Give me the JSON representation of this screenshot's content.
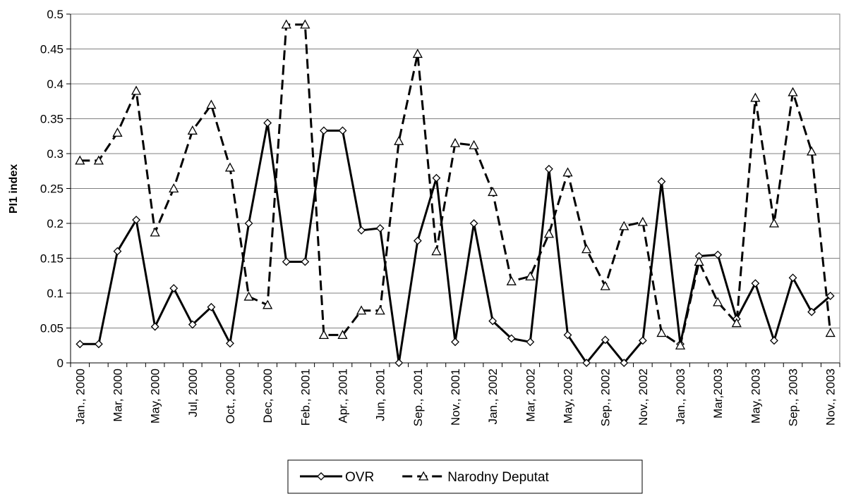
{
  "chart_data": {
    "type": "line",
    "y_label": "PI1 index",
    "categories": [
      "Jan., 2000",
      null,
      "Mar, 2000",
      null,
      "May, 2000",
      null,
      "Jul, 2000",
      null,
      "Oct., 2000",
      null,
      "Dec, 2000",
      null,
      "Feb., 2001",
      null,
      "Apr., 2001",
      null,
      "Jun, 2001",
      null,
      "Sep., 2001",
      null,
      "Nov., 2001",
      null,
      "Jan., 2002",
      null,
      "Mar, 2002",
      null,
      "May, 2002",
      null,
      "Sep., 2002",
      null,
      "Nov., 2002",
      null,
      "Jan., 2003",
      null,
      "Mar,2003",
      null,
      "May, 2003",
      null,
      "Sep., 2003",
      null,
      "Nov., 2003"
    ],
    "series": [
      {
        "name": "OVR",
        "color": "#000000",
        "marker": "diamond",
        "dashed": false,
        "values": [
          0.027,
          0.027,
          0.16,
          0.205,
          0.052,
          0.107,
          0.055,
          0.08,
          0.028,
          0.2,
          0.344,
          0.145,
          0.145,
          0.333,
          0.333,
          0.19,
          0.193,
          0.0,
          0.175,
          0.265,
          0.03,
          0.2,
          0.06,
          0.035,
          0.03,
          0.278,
          0.04,
          0.0,
          0.033,
          0.0,
          0.032,
          0.26,
          0.027,
          0.153,
          0.155,
          0.063,
          0.114,
          0.032,
          0.122,
          0.073,
          0.096
        ]
      },
      {
        "name": "Narodny Deputat",
        "color": "#000000",
        "marker": "triangle",
        "dashed": true,
        "values": [
          0.29,
          0.29,
          0.33,
          0.39,
          0.187,
          0.25,
          0.333,
          0.37,
          0.28,
          0.095,
          0.083,
          0.485,
          0.485,
          0.04,
          0.04,
          0.075,
          0.075,
          0.318,
          0.443,
          0.16,
          0.315,
          0.312,
          0.245,
          0.117,
          0.124,
          0.185,
          0.273,
          0.163,
          0.11,
          0.196,
          0.202,
          0.043,
          0.025,
          0.145,
          0.087,
          0.057,
          0.38,
          0.2,
          0.388,
          0.303,
          0.043
        ]
      }
    ],
    "ylim": [
      0,
      0.5
    ],
    "yticks": [
      0,
      0.05,
      0.1,
      0.15,
      0.2,
      0.25,
      0.3,
      0.35,
      0.4,
      0.45,
      0.5
    ],
    "grid": true,
    "legend": "bottom"
  }
}
